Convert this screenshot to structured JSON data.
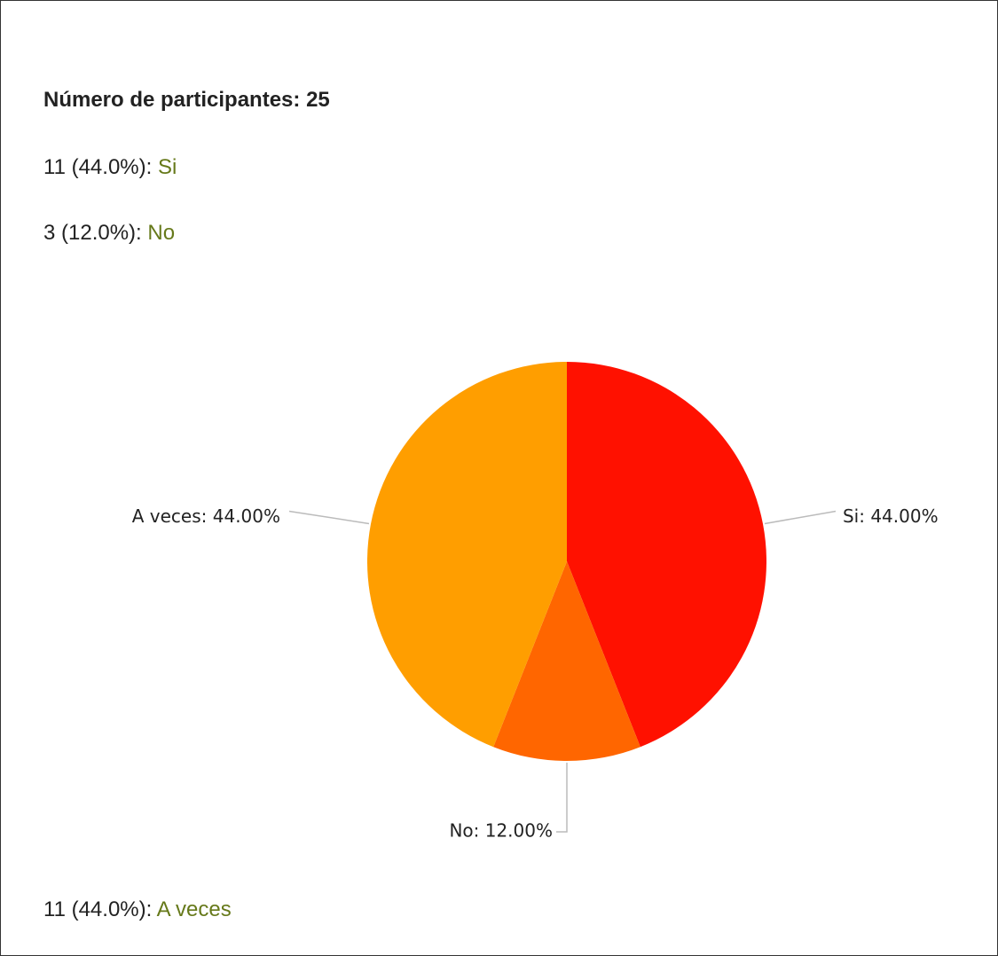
{
  "header": {
    "title": "Número de participantes: 25"
  },
  "answers": [
    {
      "count": "11 (44.0%): ",
      "answer": "Si"
    },
    {
      "count": "3 (12.0%): ",
      "answer": "No"
    },
    {
      "count": "11 (44.0%): ",
      "answer": "A veces"
    }
  ],
  "chart_data": {
    "type": "pie",
    "categories": [
      "Si",
      "No",
      "A veces"
    ],
    "values": [
      44,
      12,
      44
    ],
    "value_labels": [
      "Si: 44.00%",
      "No: 12.00%",
      "A veces: 44.00%"
    ],
    "colors": [
      "#ff1100",
      "#ff6600",
      "#ff9e00"
    ]
  }
}
